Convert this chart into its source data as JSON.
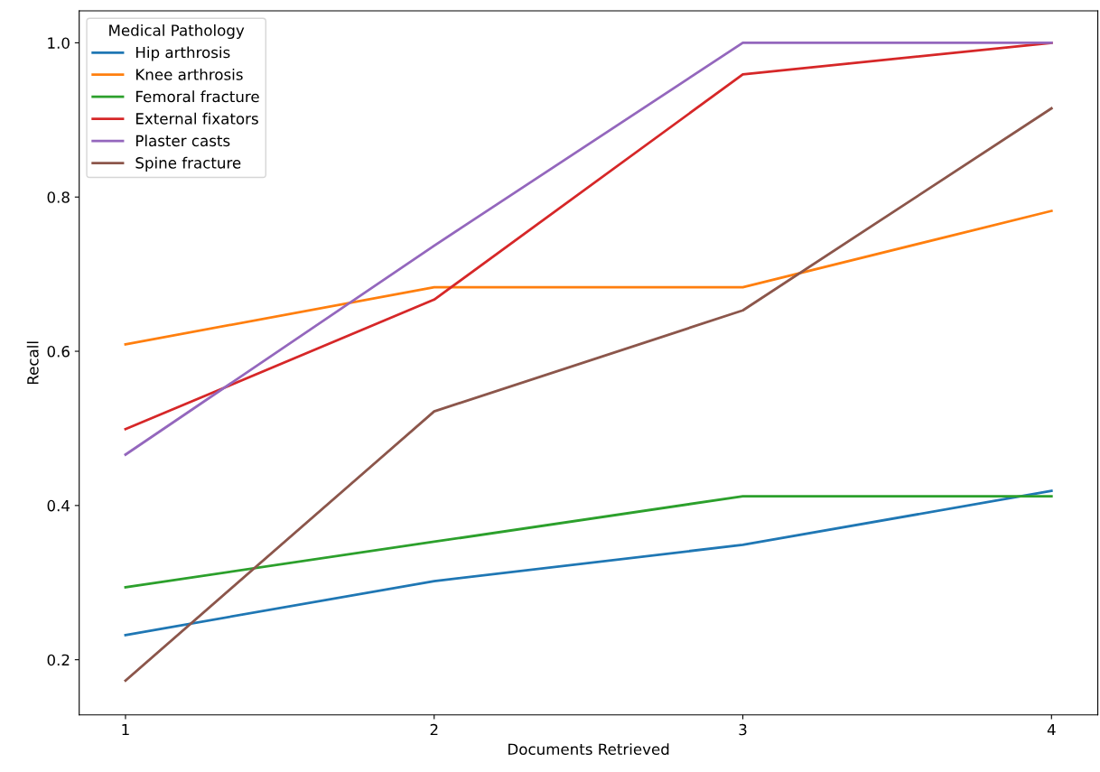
{
  "chart_data": {
    "type": "line",
    "xlabel": "Documents Retrieved",
    "ylabel": "Recall",
    "legend_title": "Medical Pathology",
    "x": [
      1,
      2,
      3,
      4
    ],
    "xlim": [
      0.85,
      4.15
    ],
    "xticks": [
      1,
      2,
      3,
      4
    ],
    "ylim": [
      0.1285,
      1.0415
    ],
    "yticks": [
      0.2,
      0.4,
      0.6,
      0.8,
      {
        "value": 1,
        "label": "1.0"
      }
    ],
    "grid": false,
    "legend": "top left",
    "series": [
      {
        "name": "Hip arthrosis",
        "color": "#1f77b4",
        "values": [
          0.232,
          0.302,
          0.349,
          0.419
        ]
      },
      {
        "name": "Knee arthrosis",
        "color": "#ff7f0e",
        "values": [
          0.609,
          0.683,
          0.683,
          0.782
        ]
      },
      {
        "name": "Femoral fracture",
        "color": "#2ca02c",
        "values": [
          0.294,
          0.353,
          0.412,
          0.412
        ]
      },
      {
        "name": "External fixators",
        "color": "#d62728",
        "values": [
          0.499,
          0.667,
          0.959,
          1.0
        ]
      },
      {
        "name": "Plaster casts",
        "color": "#9467bd",
        "values": [
          0.466,
          0.737,
          1.0,
          1.0
        ]
      },
      {
        "name": "Spine fracture",
        "color": "#8c564b",
        "values": [
          0.173,
          0.522,
          0.653,
          0.915
        ]
      }
    ]
  }
}
